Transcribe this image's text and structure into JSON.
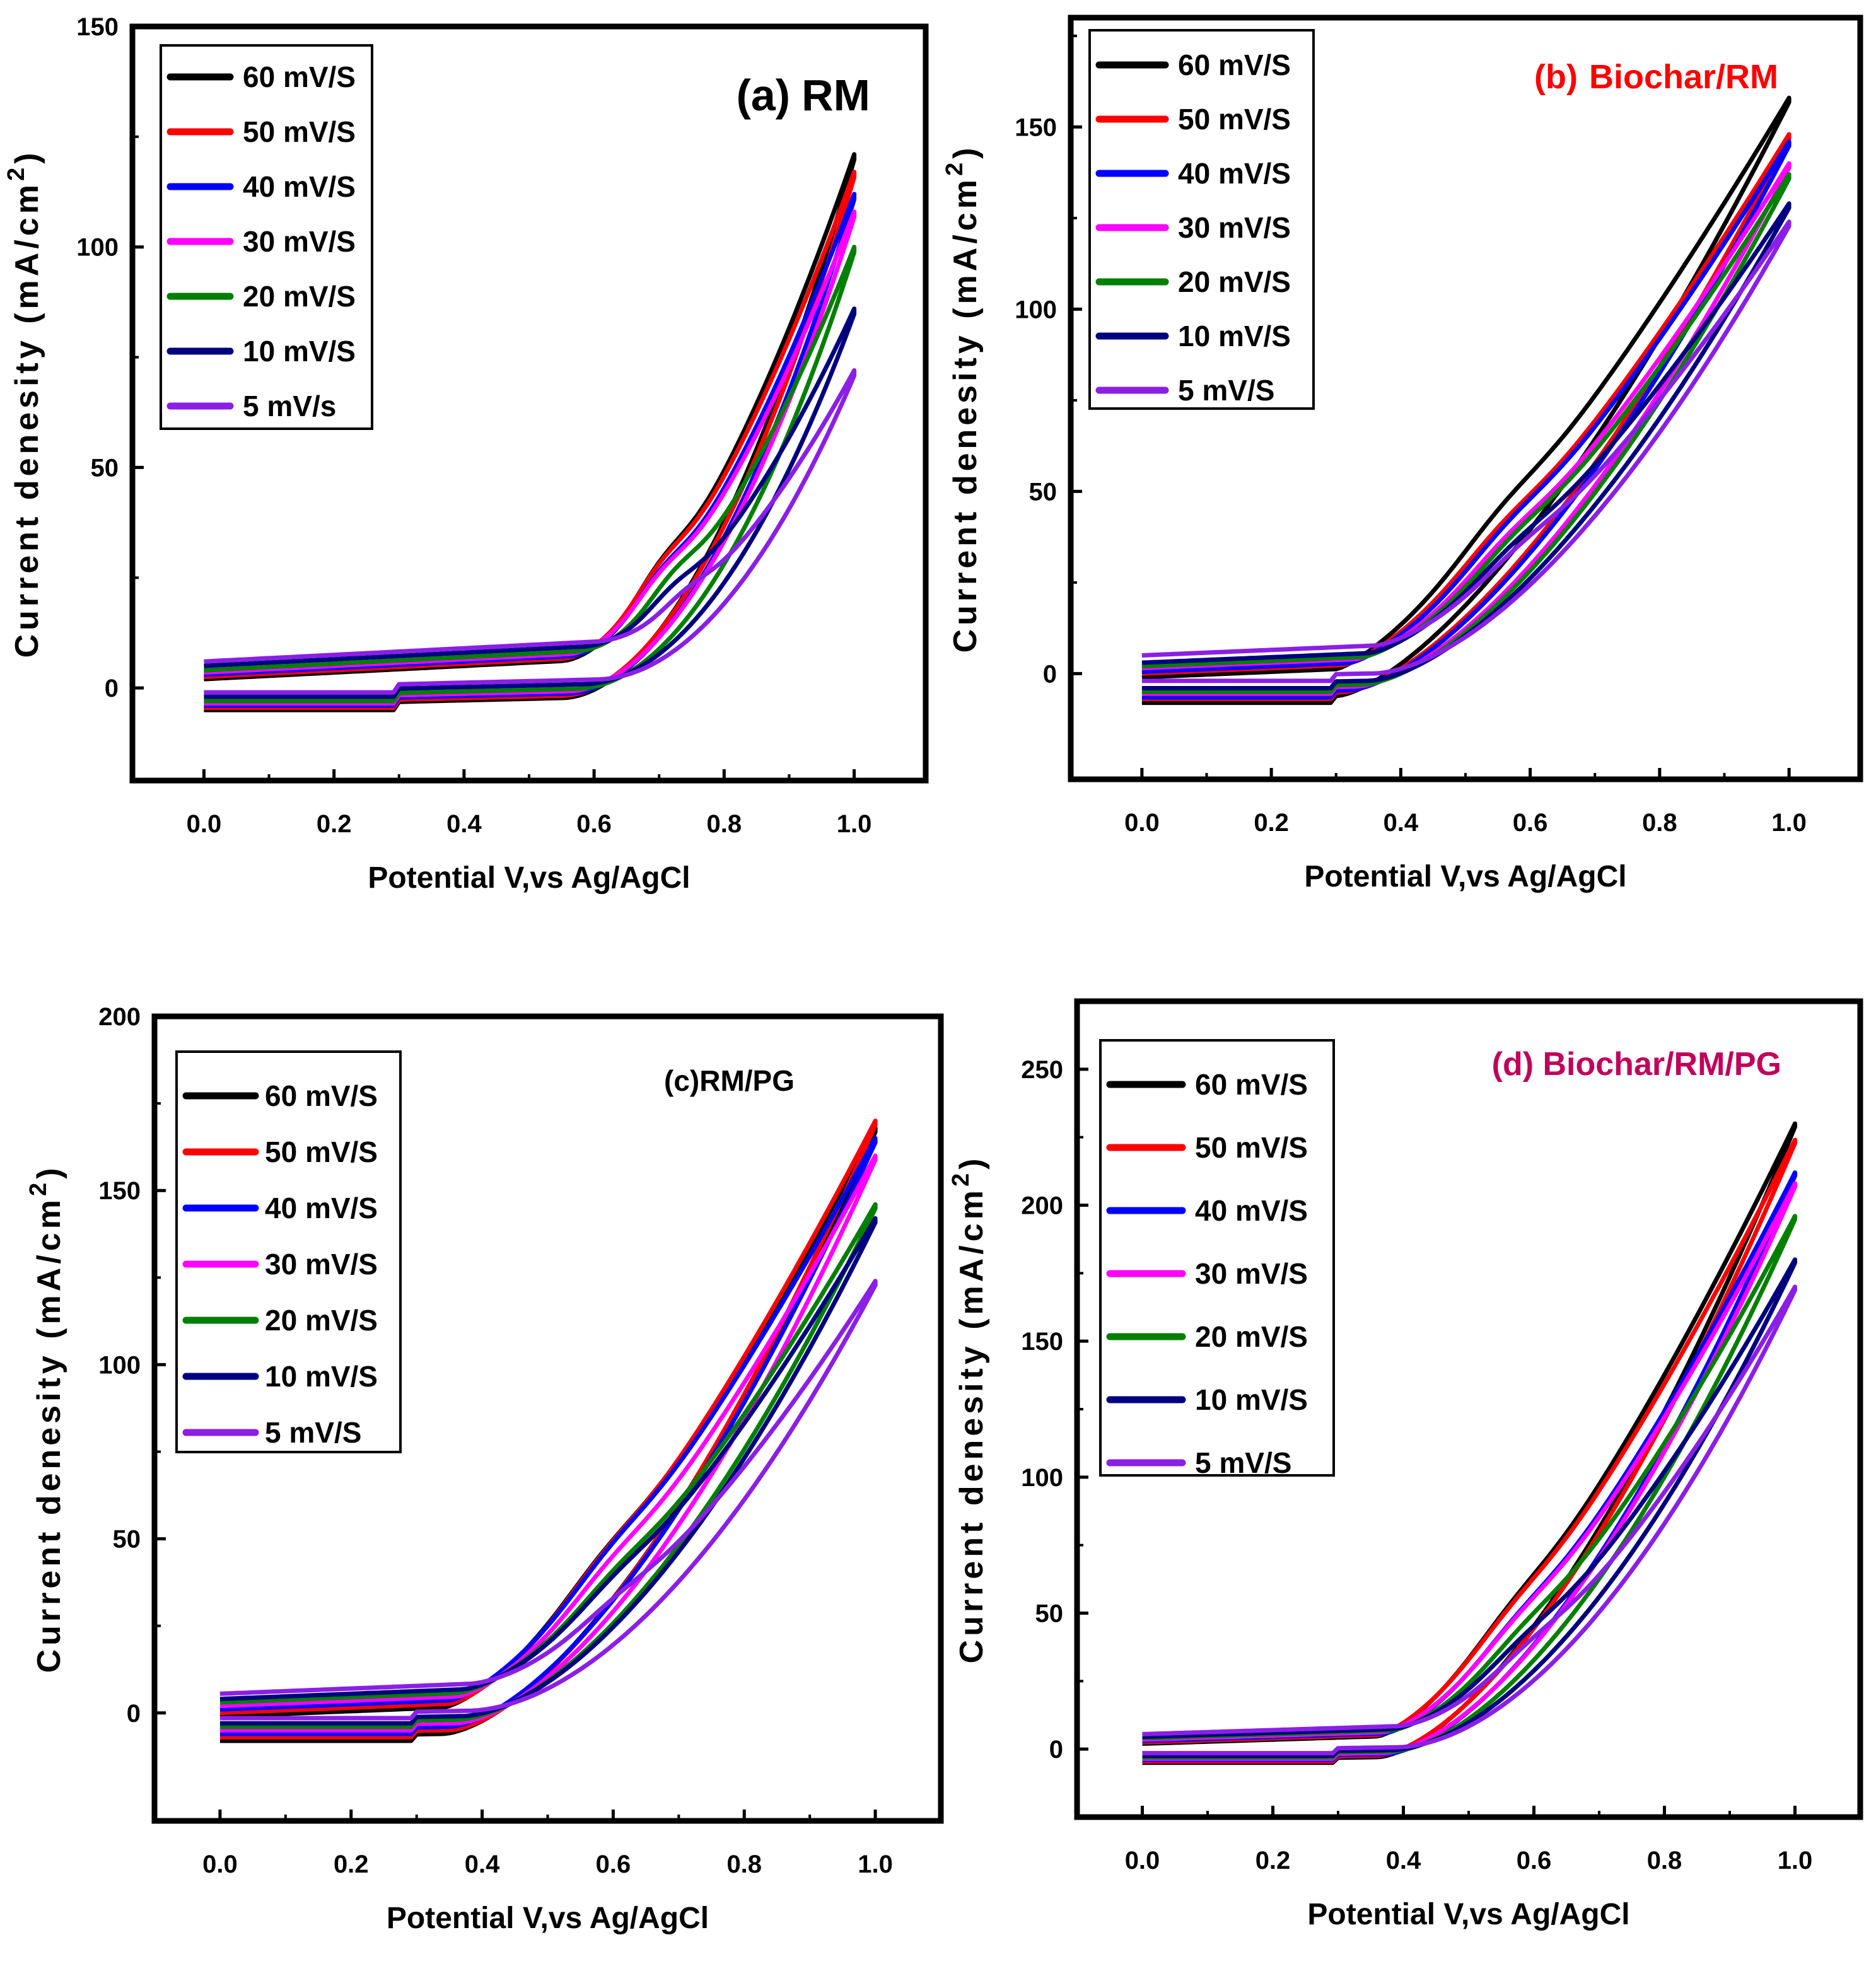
{
  "colors": {
    "60 mV/S": "#000000",
    "50 mV/S": "#ff0000",
    "40 mV/S": "#0000ff",
    "30 mV/S": "#ff00ff",
    "20 mV/S": "#007f00",
    "10 mV/S": "#00007f",
    "5 mV/S": "#8b1fe6"
  },
  "chart_data": [
    {
      "type": "line",
      "panel_label": "(a)",
      "panel_name": "RM",
      "title_color": "#000000",
      "xlabel": "Potential V,vs Ag/AgCl",
      "ylabel_main": "Current denesity (mA/cm",
      "ylabel_sup": "2",
      "ylabel_end": ")",
      "xlim": [
        -0.11,
        1.11
      ],
      "ylim": [
        -21,
        150
      ],
      "xticks": [
        "0.0",
        "0.2",
        "0.4",
        "0.6",
        "0.8",
        "1.0"
      ],
      "yticks": [
        "0",
        "50",
        "100",
        "150"
      ],
      "legend_position": "top-left",
      "legend_labels": [
        "60 mV/S",
        "50 mV/S",
        "40 mV/S",
        "30 mV/S",
        "20 mV/S",
        "10 mV/S",
        "5 mV/s"
      ],
      "legend_colors": [
        "#000000",
        "#ff0000",
        "#0000ff",
        "#ff00ff",
        "#007f00",
        "#00007f",
        "#8b1fe6"
      ],
      "series": [
        {
          "name": "60 mV/S",
          "color": "#000000",
          "peak": 121,
          "bottom": -5.0,
          "onset": 0.55,
          "kink": 0.7,
          "kinkVal": 34,
          "p": 1.9,
          "knee": 0.6
        },
        {
          "name": "50 mV/S",
          "color": "#ff0000",
          "peak": 117,
          "bottom": -4.5,
          "onset": 0.55,
          "kink": 0.7,
          "kinkVal": 33,
          "p": 1.9,
          "knee": 0.6
        },
        {
          "name": "40 mV/S",
          "color": "#0000ff",
          "peak": 112,
          "bottom": -4.0,
          "onset": 0.56,
          "kink": 0.7,
          "kinkVal": 32,
          "p": 1.9,
          "knee": 0.6
        },
        {
          "name": "30 mV/S",
          "color": "#ff00ff",
          "peak": 108,
          "bottom": -3.5,
          "onset": 0.56,
          "kink": 0.7,
          "kinkVal": 30,
          "p": 1.9,
          "knee": 0.6
        },
        {
          "name": "20 mV/S",
          "color": "#007f00",
          "peak": 100,
          "bottom": -3.0,
          "onset": 0.57,
          "kink": 0.72,
          "kinkVal": 30,
          "p": 2.0,
          "knee": 0.6
        },
        {
          "name": "10 mV/S",
          "color": "#00007f",
          "peak": 86,
          "bottom": -2.0,
          "onset": 0.58,
          "kink": 0.72,
          "kinkVal": 23,
          "p": 2.0,
          "knee": 0.6
        },
        {
          "name": "5 mV/S",
          "color": "#8b1fe6",
          "peak": 72,
          "bottom": -1.0,
          "onset": 0.6,
          "kink": 0.74,
          "kinkVal": 18,
          "p": 2.0,
          "knee": 0.6
        }
      ]
    },
    {
      "type": "line",
      "panel_label": "(b)",
      "panel_name": "Biochar/RM",
      "title_color": "#ff0000",
      "xlabel": "Potential V,vs Ag/AgCl",
      "ylabel_main": "Current denesity (mA/cm",
      "ylabel_sup": "2",
      "ylabel_end": ")",
      "xlim": [
        -0.11,
        1.11
      ],
      "ylim": [
        -29,
        180
      ],
      "xticks": [
        "0.0",
        "0.2",
        "0.4",
        "0.6",
        "0.8",
        "1.0"
      ],
      "yticks": [
        "0",
        "50",
        "100",
        "150"
      ],
      "legend_position": "top-left",
      "legend_labels": [
        "60 mV/S",
        "50 mV/S",
        "40 mV/S",
        "30 mV/S",
        "20 mV/S",
        "10 mV/S",
        "5 mV/S"
      ],
      "legend_colors": [
        "#000000",
        "#ff0000",
        "#0000ff",
        "#ff00ff",
        "#007f00",
        "#00007f",
        "#8b1fe6"
      ],
      "series": [
        {
          "name": "60 mV/S",
          "color": "#000000",
          "peak": 158,
          "bottom": -8.0,
          "onset": 0.3,
          "kink": 0.55,
          "kinkVal": 28,
          "p": 1.5,
          "knee": 0.35
        },
        {
          "name": "50 mV/S",
          "color": "#ff0000",
          "peak": 148,
          "bottom": -7.0,
          "onset": 0.31,
          "kink": 0.55,
          "kinkVal": 27,
          "p": 1.55,
          "knee": 0.35
        },
        {
          "name": "40 mV/S",
          "color": "#0000ff",
          "peak": 146,
          "bottom": -6.5,
          "onset": 0.32,
          "kink": 0.56,
          "kinkVal": 26,
          "p": 1.55,
          "knee": 0.35
        },
        {
          "name": "30 mV/S",
          "color": "#ff00ff",
          "peak": 140,
          "bottom": -5.5,
          "onset": 0.33,
          "kink": 0.56,
          "kinkVal": 25,
          "p": 1.6,
          "knee": 0.35
        },
        {
          "name": "20 mV/S",
          "color": "#007f00",
          "peak": 137,
          "bottom": -5.0,
          "onset": 0.34,
          "kink": 0.57,
          "kinkVal": 24,
          "p": 1.6,
          "knee": 0.35
        },
        {
          "name": "10 mV/S",
          "color": "#00007f",
          "peak": 129,
          "bottom": -4.0,
          "onset": 0.35,
          "kink": 0.57,
          "kinkVal": 22,
          "p": 1.6,
          "knee": 0.35
        },
        {
          "name": "5 mV/S",
          "color": "#8b1fe6",
          "peak": 124,
          "bottom": -2.0,
          "onset": 0.36,
          "kink": 0.58,
          "kinkVal": 20,
          "p": 1.65,
          "knee": 0.35
        }
      ]
    },
    {
      "type": "line",
      "panel_label": "(c)RM/PG",
      "panel_name": "",
      "title_color": "#000000",
      "xlabel": "Potential V,vs Ag/AgCl",
      "ylabel_main": "Current denesity (mA/cm",
      "ylabel_sup": "2",
      "ylabel_end": ")",
      "xlim": [
        -0.1,
        1.1
      ],
      "ylim": [
        -31,
        200
      ],
      "xticks": [
        "0.0",
        "0.2",
        "0.4",
        "0.6",
        "0.8",
        "1.0"
      ],
      "yticks": [
        "0",
        "50",
        "100",
        "150",
        "200"
      ],
      "legend_position": "top-left",
      "legend_labels": [
        "60 mV/S",
        "50 mV/S",
        "40 mV/S",
        "30 mV/S",
        "20 mV/S",
        "10 mV/S",
        "5 mV/S"
      ],
      "legend_colors": [
        "#000000",
        "#ff0000",
        "#0000ff",
        "#ff00ff",
        "#007f00",
        "#00007f",
        "#8b1fe6"
      ],
      "series": [
        {
          "name": "60 mV/S",
          "color": "#000000",
          "peak": 168,
          "bottom": -8.0,
          "onset": 0.34,
          "kink": 0.58,
          "kinkVal": 30,
          "p": 1.6,
          "knee": 0.4
        },
        {
          "name": "50 mV/S",
          "color": "#ff0000",
          "peak": 170,
          "bottom": -7.0,
          "onset": 0.35,
          "kink": 0.58,
          "kinkVal": 29,
          "p": 1.6,
          "knee": 0.4
        },
        {
          "name": "40 mV/S",
          "color": "#0000ff",
          "peak": 165,
          "bottom": -6.0,
          "onset": 0.35,
          "kink": 0.59,
          "kinkVal": 28,
          "p": 1.6,
          "knee": 0.4
        },
        {
          "name": "30 mV/S",
          "color": "#ff00ff",
          "peak": 160,
          "bottom": -5.0,
          "onset": 0.36,
          "kink": 0.59,
          "kinkVal": 26,
          "p": 1.65,
          "knee": 0.4
        },
        {
          "name": "20 mV/S",
          "color": "#007f00",
          "peak": 146,
          "bottom": -4.0,
          "onset": 0.36,
          "kink": 0.6,
          "kinkVal": 24,
          "p": 1.7,
          "knee": 0.4
        },
        {
          "name": "10 mV/S",
          "color": "#00007f",
          "peak": 142,
          "bottom": -3.0,
          "onset": 0.37,
          "kink": 0.6,
          "kinkVal": 22,
          "p": 1.7,
          "knee": 0.4
        },
        {
          "name": "5 mV/S",
          "color": "#8b1fe6",
          "peak": 124,
          "bottom": -1.5,
          "onset": 0.38,
          "kink": 0.6,
          "kinkVal": 18,
          "p": 1.8,
          "knee": 0.4
        }
      ]
    },
    {
      "type": "line",
      "panel_label": "(d) Biochar/RM/PG",
      "panel_name": "",
      "title_color": "#c0005a",
      "xlabel": "Potential V,vs Ag/AgCl",
      "ylabel_main": "Current denesity (mA/cm",
      "ylabel_sup": "2",
      "ylabel_end": ")",
      "xlim": [
        -0.1,
        1.1
      ],
      "ylim": [
        -25,
        275
      ],
      "xticks": [
        "0.0",
        "0.2",
        "0.4",
        "0.6",
        "0.8",
        "1.0"
      ],
      "yticks": [
        "0",
        "50",
        "100",
        "150",
        "200",
        "250"
      ],
      "legend_position": "top-left",
      "legend_labels": [
        "60 mV/S",
        "50 mV/S",
        "40 mV/S",
        "30 mV/S",
        "20 mV/S",
        "10 mV/S",
        "5 mV/S"
      ],
      "legend_colors": [
        "#000000",
        "#ff0000",
        "#0000ff",
        "#ff00ff",
        "#007f00",
        "#00007f",
        "#8b1fe6"
      ],
      "series": [
        {
          "name": "60 mV/S",
          "color": "#000000",
          "peak": 230,
          "bottom": -5.0,
          "onset": 0.36,
          "kink": 0.56,
          "kinkVal": 32,
          "p": 1.6,
          "knee": 0.4
        },
        {
          "name": "50 mV/S",
          "color": "#ff0000",
          "peak": 224,
          "bottom": -4.5,
          "onset": 0.36,
          "kink": 0.56,
          "kinkVal": 31,
          "p": 1.6,
          "knee": 0.4
        },
        {
          "name": "40 mV/S",
          "color": "#0000ff",
          "peak": 212,
          "bottom": -4.0,
          "onset": 0.37,
          "kink": 0.57,
          "kinkVal": 30,
          "p": 1.65,
          "knee": 0.4
        },
        {
          "name": "30 mV/S",
          "color": "#ff00ff",
          "peak": 208,
          "bottom": -3.5,
          "onset": 0.37,
          "kink": 0.57,
          "kinkVal": 29,
          "p": 1.65,
          "knee": 0.4
        },
        {
          "name": "20 mV/S",
          "color": "#007f00",
          "peak": 196,
          "bottom": -3.0,
          "onset": 0.38,
          "kink": 0.58,
          "kinkVal": 28,
          "p": 1.7,
          "knee": 0.4
        },
        {
          "name": "10 mV/S",
          "color": "#00007f",
          "peak": 180,
          "bottom": -2.5,
          "onset": 0.38,
          "kink": 0.58,
          "kinkVal": 27,
          "p": 1.75,
          "knee": 0.4
        },
        {
          "name": "5 mV/S",
          "color": "#8b1fe6",
          "peak": 170,
          "bottom": -1.5,
          "onset": 0.39,
          "kink": 0.59,
          "kinkVal": 25,
          "p": 1.8,
          "knee": 0.4
        }
      ]
    }
  ]
}
